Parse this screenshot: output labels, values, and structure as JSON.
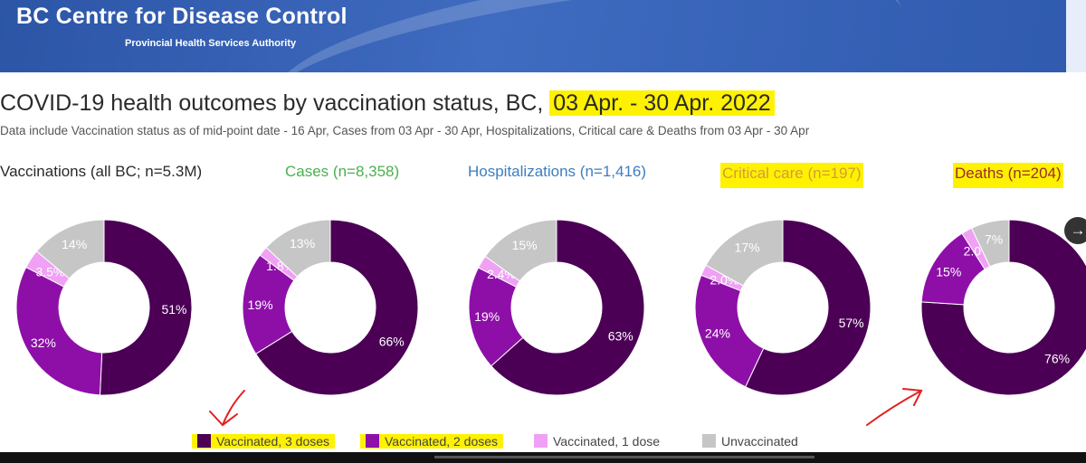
{
  "header": {
    "brand": "BC Centre for Disease Control",
    "subbrand": "Provincial Health Services Authority"
  },
  "title": {
    "main": "COVID-19 health outcomes by vaccination status, BC,",
    "date_range": "03 Apr. - 30 Apr. 2022"
  },
  "subtitle": "Data include Vaccination status as of mid-point date - 16 Apr, Cases  from  03 Apr - 30 Apr, Hospitalizations, Critical care & Deaths from 03 Apr - 30 Apr",
  "nav": {
    "next_icon": "arrow-right-icon",
    "glyph": "→"
  },
  "colors": {
    "dose3": "#4b0055",
    "dose2": "#8e0fa8",
    "dose1": "#f0a0f5",
    "unvax": "#c6c6c6",
    "vaccinations_title": "#2a2a2a",
    "cases_title": "#4caf50",
    "hospitalizations_title": "#3d7ec0",
    "critical_title": "#d49a3a",
    "deaths_title": "#9e2a2a",
    "highlight": "#fff200",
    "annotation": "#e02020"
  },
  "chart_data": [
    {
      "type": "pie",
      "title": "Vaccinations (all BC; n=5.3M)",
      "categories": [
        "Vaccinated, 3 doses",
        "Vaccinated, 2 doses",
        "Vaccinated, 1 dose",
        "Unvaccinated"
      ],
      "values": [
        51,
        32,
        3.5,
        14
      ],
      "labels": [
        "51%",
        "32%",
        "3.5%",
        "14%"
      ]
    },
    {
      "type": "pie",
      "title": "Cases (n=8,358)",
      "categories": [
        "Vaccinated, 3 doses",
        "Vaccinated, 2 doses",
        "Vaccinated, 1 dose",
        "Unvaccinated"
      ],
      "values": [
        66,
        19,
        1.8,
        13
      ],
      "labels": [
        "66%",
        "19%",
        "1.8%",
        "13%"
      ]
    },
    {
      "type": "pie",
      "title": "Hospitalizations (n=1,416)",
      "categories": [
        "Vaccinated, 3 doses",
        "Vaccinated, 2 doses",
        "Vaccinated, 1 dose",
        "Unvaccinated"
      ],
      "values": [
        63,
        19,
        2.4,
        15
      ],
      "labels": [
        "63%",
        "19%",
        "2.4%",
        "15%"
      ]
    },
    {
      "type": "pie",
      "title": "Critical care (n=197)",
      "categories": [
        "Vaccinated, 3 doses",
        "Vaccinated, 2 doses",
        "Vaccinated, 1 dose",
        "Unvaccinated"
      ],
      "values": [
        57,
        24,
        2.0,
        17
      ],
      "labels": [
        "57%",
        "24%",
        "2.0%",
        "17%"
      ]
    },
    {
      "type": "pie",
      "title": "Deaths (n=204)",
      "categories": [
        "Vaccinated, 3 doses",
        "Vaccinated, 2 doses",
        "Vaccinated, 1 dose",
        "Unvaccinated"
      ],
      "values": [
        76,
        15,
        2.0,
        7
      ],
      "labels": [
        "76%",
        "15%",
        "2.0%",
        "7%"
      ]
    }
  ],
  "legend": [
    {
      "label": "Vaccinated, 3 doses",
      "color": "#4b0055",
      "highlighted": true
    },
    {
      "label": "Vaccinated, 2 doses",
      "color": "#8e0fa8",
      "highlighted": true
    },
    {
      "label": "Vaccinated, 1 dose",
      "color": "#f0a0f5",
      "highlighted": false
    },
    {
      "label": "Unvaccinated",
      "color": "#c6c6c6",
      "highlighted": false
    }
  ]
}
